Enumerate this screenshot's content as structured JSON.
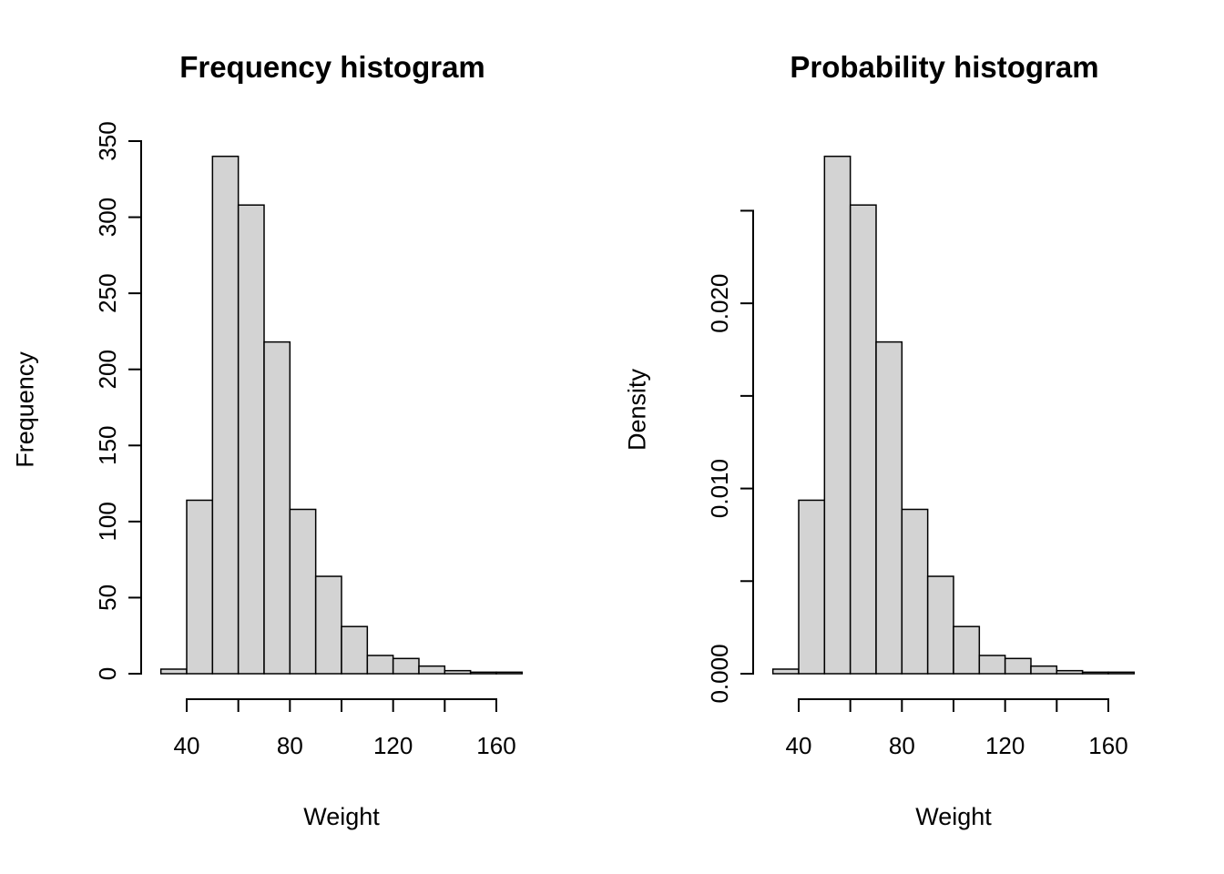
{
  "figure": {
    "background": "#ffffff",
    "text_color": "#000000"
  },
  "chart_data": [
    {
      "type": "bar",
      "variant": "histogram",
      "title": "Frequency histogram",
      "xlabel": "Weight",
      "ylabel": "Frequency",
      "bin_start": 30,
      "bin_width": 10,
      "bin_edges": [
        30,
        40,
        50,
        60,
        70,
        80,
        90,
        100,
        110,
        120,
        130,
        140,
        150,
        160,
        170
      ],
      "values": [
        3,
        114,
        340,
        308,
        218,
        108,
        64,
        31,
        12,
        10,
        5,
        2,
        1,
        1
      ],
      "x_ticks": [
        {
          "v": 40,
          "label": "40"
        },
        {
          "v": 60,
          "label": ""
        },
        {
          "v": 80,
          "label": "80"
        },
        {
          "v": 100,
          "label": ""
        },
        {
          "v": 120,
          "label": "120"
        },
        {
          "v": 140,
          "label": ""
        },
        {
          "v": 160,
          "label": "160"
        }
      ],
      "y_ticks": [
        {
          "v": 0,
          "label": "0"
        },
        {
          "v": 50,
          "label": "50"
        },
        {
          "v": 100,
          "label": "100"
        },
        {
          "v": 150,
          "label": "150"
        },
        {
          "v": 200,
          "label": "200"
        },
        {
          "v": 250,
          "label": "250"
        },
        {
          "v": 300,
          "label": "300"
        },
        {
          "v": 350,
          "label": "350"
        }
      ],
      "xlim": [
        30,
        170
      ],
      "ylim": [
        0,
        350
      ],
      "grid": false,
      "legend": false,
      "bar_fill": "#d3d3d3",
      "bar_stroke": "#000000"
    },
    {
      "type": "bar",
      "variant": "histogram",
      "title": "Probability histogram",
      "xlabel": "Weight",
      "ylabel": "Density",
      "bin_start": 30,
      "bin_width": 10,
      "bin_edges": [
        30,
        40,
        50,
        60,
        70,
        80,
        90,
        100,
        110,
        120,
        130,
        140,
        150,
        160,
        170
      ],
      "values": [
        0.000247,
        0.009368,
        0.027937,
        0.025308,
        0.017913,
        0.008874,
        0.005259,
        0.002547,
        0.000986,
        0.000822,
        0.000411,
        0.000164,
        8.2e-05,
        8.2e-05
      ],
      "x_ticks": [
        {
          "v": 40,
          "label": "40"
        },
        {
          "v": 60,
          "label": ""
        },
        {
          "v": 80,
          "label": "80"
        },
        {
          "v": 100,
          "label": ""
        },
        {
          "v": 120,
          "label": "120"
        },
        {
          "v": 140,
          "label": ""
        },
        {
          "v": 160,
          "label": "160"
        }
      ],
      "y_ticks": [
        {
          "v": 0,
          "label": "0.000"
        },
        {
          "v": 0.005,
          "label": ""
        },
        {
          "v": 0.01,
          "label": "0.010"
        },
        {
          "v": 0.015,
          "label": ""
        },
        {
          "v": 0.02,
          "label": "0.020"
        },
        {
          "v": 0.025,
          "label": ""
        }
      ],
      "xlim": [
        30,
        170
      ],
      "ylim": [
        0,
        0.025
      ],
      "grid": false,
      "legend": false,
      "bar_fill": "#d3d3d3",
      "bar_stroke": "#000000"
    }
  ]
}
